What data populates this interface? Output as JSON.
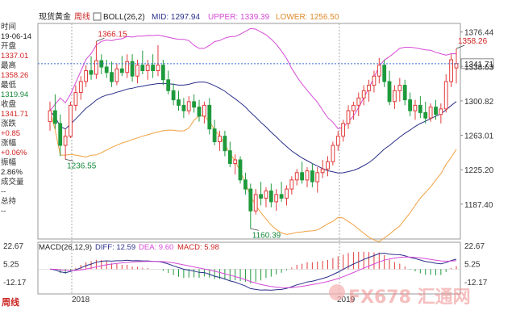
{
  "header": {
    "symbol": "现货黄金",
    "period": "周线",
    "indicator_label": "BOLL(26,2)",
    "mid": "MID: 1297.94",
    "upper": "UPPER: 1339.39",
    "lower": "LOWER: 1256.50"
  },
  "info_panel": {
    "time_label": "时间",
    "time_value": "19-06-14",
    "open_label": "开盘",
    "open_value": "1337.01",
    "high_label": "最高",
    "high_value": "1358.26",
    "low_label": "最低",
    "low_value": "1319.94",
    "close_label": "收盘",
    "close_value": "1341.71",
    "change_label": "涨跌",
    "change_value": "+0.85",
    "pct_label": "涨幅",
    "pct_value": "+0.06%",
    "amp_label": "振幅",
    "amp_value": "2.86%",
    "vol_label": "成交量",
    "vol_value": "--",
    "oi_label": "总持",
    "oi_value": "--"
  },
  "period_button": "周线",
  "watermark": "FX678 汇通网",
  "colors": {
    "up": "#e23b3b",
    "down": "#1e9a3c",
    "upper_band": "#d64ad6",
    "mid_band": "#2a2f8a",
    "lower_band": "#f0a040",
    "dea": "#d64ad6",
    "diff": "#2a2f8a"
  },
  "chart_data": [
    {
      "type": "candlestick",
      "title": "现货黄金 周线 BOLL(26,2)",
      "y_ticks": [
        "1376.44",
        "1338.63",
        "1300.82",
        "1263.01",
        "1225.20",
        "1187.40"
      ],
      "ylim": [
        1150,
        1385
      ],
      "current_price_label": "1341.71",
      "x_labels": [
        "2018",
        "2019"
      ],
      "annotations": [
        {
          "text": "1366.15",
          "value": 1366.15
        },
        {
          "text": "1236.55",
          "value": 1236.55
        },
        {
          "text": "1160.39",
          "value": 1160.39
        },
        {
          "text": "1358.26",
          "value": 1358.26
        }
      ],
      "candles": [
        {
          "o": 1278,
          "h": 1300,
          "l": 1268,
          "c": 1290
        },
        {
          "o": 1290,
          "h": 1308,
          "l": 1270,
          "c": 1276
        },
        {
          "o": 1276,
          "h": 1286,
          "l": 1240,
          "c": 1252
        },
        {
          "o": 1252,
          "h": 1270,
          "l": 1236.55,
          "c": 1262
        },
        {
          "o": 1262,
          "h": 1300,
          "l": 1260,
          "c": 1296
        },
        {
          "o": 1296,
          "h": 1318,
          "l": 1290,
          "c": 1310
        },
        {
          "o": 1310,
          "h": 1328,
          "l": 1302,
          "c": 1322
        },
        {
          "o": 1322,
          "h": 1340,
          "l": 1316,
          "c": 1334
        },
        {
          "o": 1334,
          "h": 1350,
          "l": 1324,
          "c": 1330
        },
        {
          "o": 1330,
          "h": 1366.15,
          "l": 1325,
          "c": 1345
        },
        {
          "o": 1345,
          "h": 1352,
          "l": 1330,
          "c": 1338
        },
        {
          "o": 1338,
          "h": 1346,
          "l": 1326,
          "c": 1332
        },
        {
          "o": 1332,
          "h": 1344,
          "l": 1316,
          "c": 1322
        },
        {
          "o": 1322,
          "h": 1342,
          "l": 1318,
          "c": 1336
        },
        {
          "o": 1336,
          "h": 1350,
          "l": 1328,
          "c": 1332
        },
        {
          "o": 1332,
          "h": 1352,
          "l": 1326,
          "c": 1344
        },
        {
          "o": 1344,
          "h": 1352,
          "l": 1322,
          "c": 1328
        },
        {
          "o": 1328,
          "h": 1346,
          "l": 1320,
          "c": 1340
        },
        {
          "o": 1340,
          "h": 1356,
          "l": 1330,
          "c": 1334
        },
        {
          "o": 1334,
          "h": 1346,
          "l": 1324,
          "c": 1340
        },
        {
          "o": 1340,
          "h": 1352,
          "l": 1326,
          "c": 1334
        },
        {
          "o": 1334,
          "h": 1362,
          "l": 1328,
          "c": 1340
        },
        {
          "o": 1340,
          "h": 1346,
          "l": 1318,
          "c": 1324
        },
        {
          "o": 1324,
          "h": 1334,
          "l": 1308,
          "c": 1312
        },
        {
          "o": 1312,
          "h": 1320,
          "l": 1296,
          "c": 1302
        },
        {
          "o": 1302,
          "h": 1312,
          "l": 1290,
          "c": 1296
        },
        {
          "o": 1296,
          "h": 1304,
          "l": 1282,
          "c": 1290
        },
        {
          "o": 1290,
          "h": 1306,
          "l": 1286,
          "c": 1300
        },
        {
          "o": 1300,
          "h": 1308,
          "l": 1288,
          "c": 1294
        },
        {
          "o": 1294,
          "h": 1302,
          "l": 1278,
          "c": 1284
        },
        {
          "o": 1284,
          "h": 1300,
          "l": 1276,
          "c": 1296
        },
        {
          "o": 1296,
          "h": 1304,
          "l": 1264,
          "c": 1270
        },
        {
          "o": 1270,
          "h": 1280,
          "l": 1252,
          "c": 1256
        },
        {
          "o": 1256,
          "h": 1268,
          "l": 1246,
          "c": 1262
        },
        {
          "o": 1262,
          "h": 1268,
          "l": 1240,
          "c": 1246
        },
        {
          "o": 1246,
          "h": 1256,
          "l": 1228,
          "c": 1232
        },
        {
          "o": 1232,
          "h": 1242,
          "l": 1220,
          "c": 1236
        },
        {
          "o": 1236,
          "h": 1240,
          "l": 1210,
          "c": 1214
        },
        {
          "o": 1214,
          "h": 1222,
          "l": 1198,
          "c": 1204
        },
        {
          "o": 1204,
          "h": 1210,
          "l": 1160.39,
          "c": 1180
        },
        {
          "o": 1180,
          "h": 1204,
          "l": 1176,
          "c": 1198
        },
        {
          "o": 1198,
          "h": 1212,
          "l": 1186,
          "c": 1194
        },
        {
          "o": 1194,
          "h": 1206,
          "l": 1184,
          "c": 1202
        },
        {
          "o": 1202,
          "h": 1210,
          "l": 1184,
          "c": 1190
        },
        {
          "o": 1190,
          "h": 1204,
          "l": 1180,
          "c": 1198
        },
        {
          "o": 1198,
          "h": 1212,
          "l": 1190,
          "c": 1194
        },
        {
          "o": 1194,
          "h": 1208,
          "l": 1186,
          "c": 1204
        },
        {
          "o": 1204,
          "h": 1218,
          "l": 1198,
          "c": 1214
        },
        {
          "o": 1214,
          "h": 1226,
          "l": 1208,
          "c": 1222
        },
        {
          "o": 1222,
          "h": 1234,
          "l": 1210,
          "c": 1214
        },
        {
          "o": 1214,
          "h": 1228,
          "l": 1206,
          "c": 1224
        },
        {
          "o": 1224,
          "h": 1232,
          "l": 1206,
          "c": 1212
        },
        {
          "o": 1212,
          "h": 1228,
          "l": 1200,
          "c": 1222
        },
        {
          "o": 1222,
          "h": 1236,
          "l": 1216,
          "c": 1226
        },
        {
          "o": 1226,
          "h": 1240,
          "l": 1218,
          "c": 1234
        },
        {
          "o": 1234,
          "h": 1256,
          "l": 1230,
          "c": 1252
        },
        {
          "o": 1252,
          "h": 1268,
          "l": 1246,
          "c": 1262
        },
        {
          "o": 1262,
          "h": 1280,
          "l": 1256,
          "c": 1276
        },
        {
          "o": 1276,
          "h": 1296,
          "l": 1270,
          "c": 1290
        },
        {
          "o": 1290,
          "h": 1300,
          "l": 1280,
          "c": 1296
        },
        {
          "o": 1296,
          "h": 1310,
          "l": 1284,
          "c": 1304
        },
        {
          "o": 1304,
          "h": 1318,
          "l": 1296,
          "c": 1312
        },
        {
          "o": 1312,
          "h": 1324,
          "l": 1300,
          "c": 1318
        },
        {
          "o": 1318,
          "h": 1334,
          "l": 1310,
          "c": 1328
        },
        {
          "o": 1328,
          "h": 1348,
          "l": 1320,
          "c": 1340
        },
        {
          "o": 1340,
          "h": 1346,
          "l": 1316,
          "c": 1322
        },
        {
          "o": 1322,
          "h": 1334,
          "l": 1296,
          "c": 1300
        },
        {
          "o": 1300,
          "h": 1318,
          "l": 1292,
          "c": 1312
        },
        {
          "o": 1312,
          "h": 1326,
          "l": 1300,
          "c": 1318
        },
        {
          "o": 1318,
          "h": 1324,
          "l": 1296,
          "c": 1302
        },
        {
          "o": 1302,
          "h": 1310,
          "l": 1284,
          "c": 1290
        },
        {
          "o": 1290,
          "h": 1302,
          "l": 1280,
          "c": 1296
        },
        {
          "o": 1296,
          "h": 1306,
          "l": 1282,
          "c": 1288
        },
        {
          "o": 1288,
          "h": 1300,
          "l": 1276,
          "c": 1282
        },
        {
          "o": 1282,
          "h": 1298,
          "l": 1278,
          "c": 1294
        },
        {
          "o": 1294,
          "h": 1302,
          "l": 1280,
          "c": 1286
        },
        {
          "o": 1286,
          "h": 1298,
          "l": 1276,
          "c": 1292
        },
        {
          "o": 1292,
          "h": 1330,
          "l": 1288,
          "c": 1322
        },
        {
          "o": 1322,
          "h": 1352,
          "l": 1316,
          "c": 1346
        },
        {
          "o": 1337.01,
          "h": 1358.26,
          "l": 1319.94,
          "c": 1341.71
        }
      ]
    },
    {
      "type": "bar",
      "title": "MACD(26,12,9)",
      "series_labels": [
        "DIFF: 12.59",
        "DEA: 9.60",
        "MACD: 5.98"
      ],
      "y_ticks": [
        "22.67",
        "5.25",
        "-12.17"
      ],
      "ylim": [
        -22,
        24
      ]
    }
  ]
}
